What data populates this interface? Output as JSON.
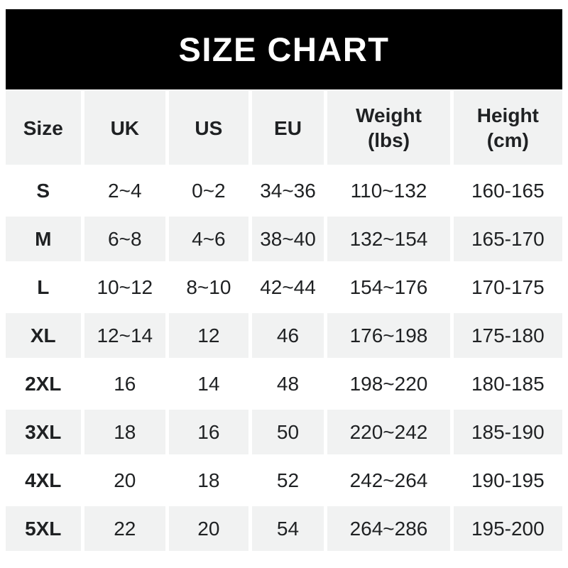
{
  "title": "SIZE CHART",
  "colors": {
    "page_bg": "#ffffff",
    "banner_bg": "#000000",
    "banner_text": "#ffffff",
    "alt_row_bg": "#f1f2f2",
    "cell_text": "#1f2123"
  },
  "chart_data": {
    "type": "table",
    "title": "SIZE CHART",
    "columns": [
      {
        "label": "Size",
        "unit": ""
      },
      {
        "label": "UK",
        "unit": ""
      },
      {
        "label": "US",
        "unit": ""
      },
      {
        "label": "EU",
        "unit": ""
      },
      {
        "label": "Weight",
        "unit": "(lbs)"
      },
      {
        "label": "Height",
        "unit": "(cm)"
      }
    ],
    "rows": [
      {
        "size": "S",
        "uk": "2~4",
        "us": "0~2",
        "eu": "34~36",
        "weight": "110~132",
        "height": "160-165"
      },
      {
        "size": "M",
        "uk": "6~8",
        "us": "4~6",
        "eu": "38~40",
        "weight": "132~154",
        "height": "165-170"
      },
      {
        "size": "L",
        "uk": "10~12",
        "us": "8~10",
        "eu": "42~44",
        "weight": "154~176",
        "height": "170-175"
      },
      {
        "size": "XL",
        "uk": "12~14",
        "us": "12",
        "eu": "46",
        "weight": "176~198",
        "height": "175-180"
      },
      {
        "size": "2XL",
        "uk": "16",
        "us": "14",
        "eu": "48",
        "weight": "198~220",
        "height": "180-185"
      },
      {
        "size": "3XL",
        "uk": "18",
        "us": "16",
        "eu": "50",
        "weight": "220~242",
        "height": "185-190"
      },
      {
        "size": "4XL",
        "uk": "20",
        "us": "18",
        "eu": "52",
        "weight": "242~264",
        "height": "190-195"
      },
      {
        "size": "5XL",
        "uk": "22",
        "us": "20",
        "eu": "54",
        "weight": "264~286",
        "height": "195-200"
      }
    ]
  }
}
